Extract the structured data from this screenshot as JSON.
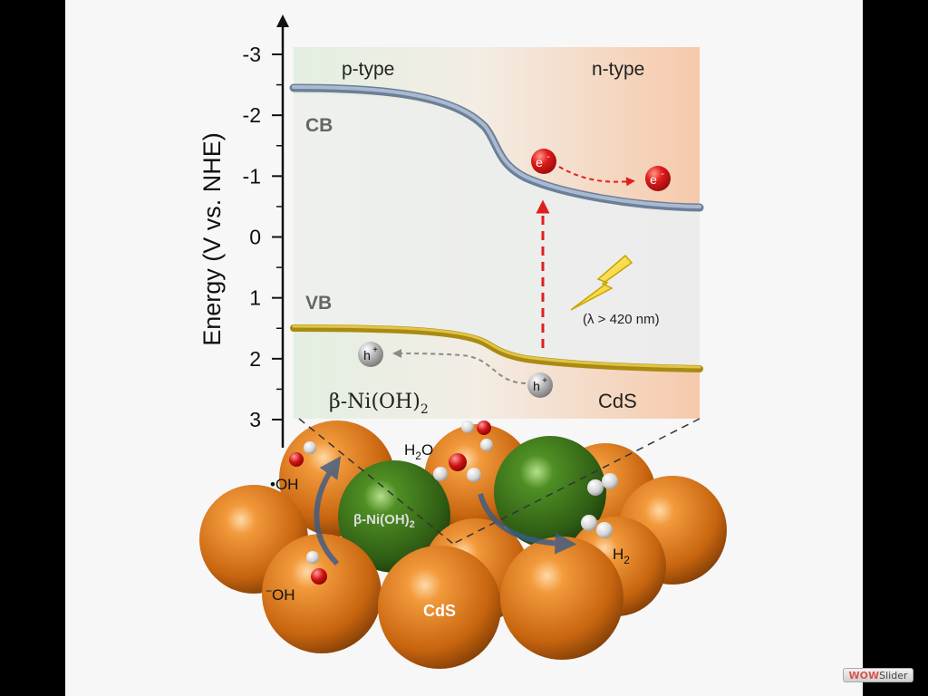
{
  "diagram": {
    "axis": {
      "label": "Energy (V vs. NHE)",
      "ticks": [
        "-3",
        "-2",
        "-1",
        "0",
        "1",
        "2",
        "3"
      ]
    },
    "regions": {
      "left": "p-type",
      "right": "n-type"
    },
    "bands": {
      "conduction": "CB",
      "valence": "VB"
    },
    "carriers": {
      "electron": "e",
      "hole": "h",
      "electron_sup": "-",
      "hole_sup": "+"
    },
    "light": "(λ > 420 nm)",
    "materials": {
      "left_name": "β-Ni(OH)",
      "left_sub": "2",
      "right_name": "CdS"
    },
    "lattice": {
      "nioh_label": "β-Ni(OH)",
      "nioh_sub": "2",
      "cds_label": "CdS",
      "oh_radical": "•OH",
      "hydroxide": "OH",
      "hydroxide_sup": "−",
      "water": "H",
      "water_sub": "2",
      "water_tail": "O",
      "hydrogen": "H",
      "hydrogen_sub": "2"
    },
    "colors": {
      "cb_band": "#8a9db6",
      "vb_band": "#c9a227",
      "cds_sphere": "#d97a1a",
      "nioh_sphere": "#3f7a1e",
      "electron": "#e02020",
      "hole": "#9a9a9a",
      "excitation_arrow": "#e01e1e"
    }
  },
  "watermark": {
    "part1": "WOW",
    "part2": "Slider"
  }
}
